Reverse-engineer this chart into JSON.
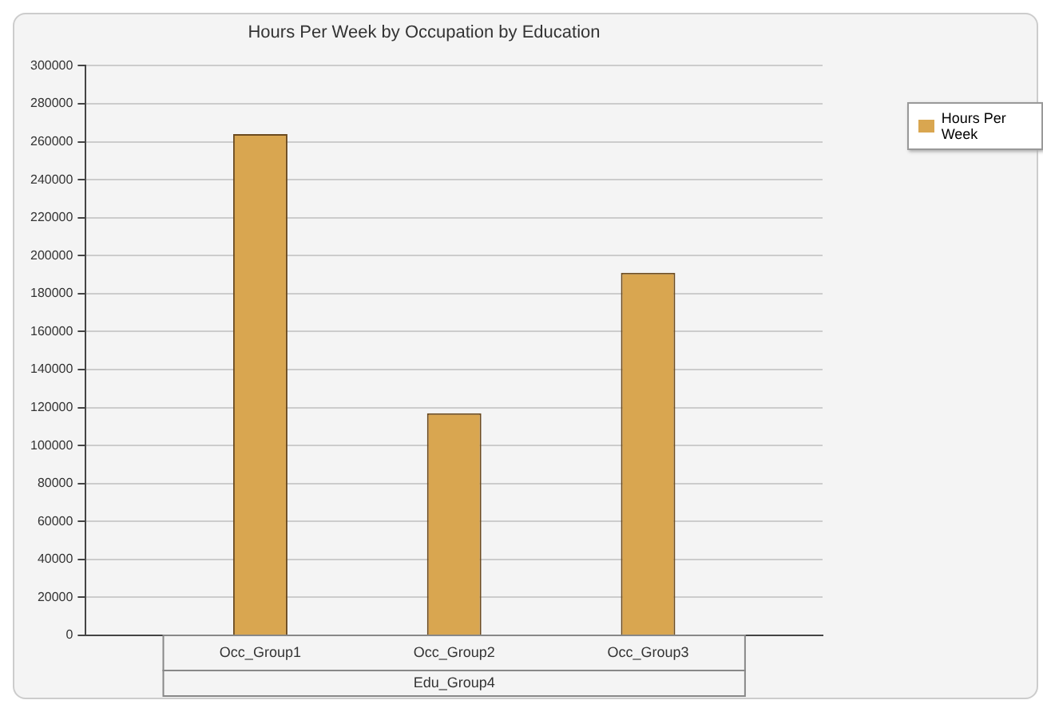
{
  "chart_data": {
    "type": "bar",
    "title": "Hours Per Week by Occupation by Education",
    "xlabel": "Edu_Group4",
    "categories": [
      "Occ_Group1",
      "Occ_Group2",
      "Occ_Group3"
    ],
    "series": [
      {
        "name": "Hours Per Week",
        "color": "#d9a650",
        "values": [
          264000,
          117000,
          191000
        ]
      }
    ],
    "ylim": [
      0,
      300000
    ],
    "yticks": [
      0,
      20000,
      40000,
      60000,
      80000,
      100000,
      120000,
      140000,
      160000,
      180000,
      200000,
      220000,
      240000,
      260000,
      280000,
      300000
    ],
    "grid": "y",
    "legend": "top right"
  }
}
